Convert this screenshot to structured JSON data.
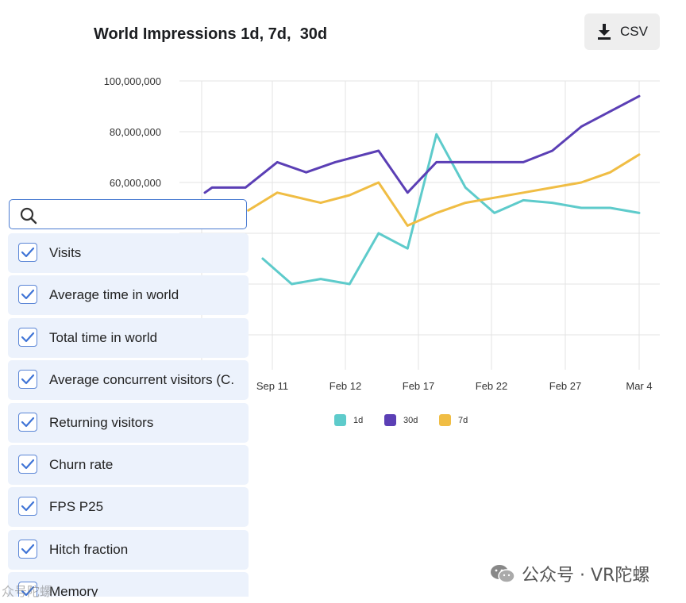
{
  "header": {
    "title": "World Impressions 1d, 7d,  30d",
    "csv_label": "CSV"
  },
  "search": {
    "value": "",
    "placeholder": ""
  },
  "metrics": [
    {
      "label": "Visits",
      "checked": true
    },
    {
      "label": "Average time in world",
      "checked": true
    },
    {
      "label": "Total time in world",
      "checked": true
    },
    {
      "label": "Average concurrent visitors (C.",
      "checked": true
    },
    {
      "label": "Returning visitors",
      "checked": true
    },
    {
      "label": "Churn rate",
      "checked": true
    },
    {
      "label": "FPS P25",
      "checked": true
    },
    {
      "label": "Hitch fraction",
      "checked": true
    },
    {
      "label": "Memory",
      "checked": true
    }
  ],
  "watermark": {
    "right": "公众号 · VR陀螺",
    "left": "众号陀螺"
  },
  "chart_data": {
    "type": "line",
    "title": "World Impressions 1d, 7d,  30d",
    "x_labels": [
      "Sep 11",
      "Feb 12",
      "Feb 17",
      "Feb 22",
      "Feb 27",
      "Mar 4"
    ],
    "y_ticks": [
      "100,000,000",
      "80,000,000",
      "60,000,000"
    ],
    "ylim": [
      0,
      100000000
    ],
    "x_range": [
      0,
      30
    ],
    "grid": true,
    "legend_position": "bottom-center",
    "series": [
      {
        "name": "1d",
        "color": "#5ecbcb",
        "x": [
          4,
          6,
          8,
          10,
          12,
          14,
          16,
          18,
          20,
          22,
          24,
          26,
          28,
          30
        ],
        "y": [
          30000000,
          20000000,
          22000000,
          20000000,
          40000000,
          34000000,
          79000000,
          58000000,
          48000000,
          53000000,
          52000000,
          50000000,
          50000000,
          48000000
        ]
      },
      {
        "name": "30d",
        "color": "#5b3fb5",
        "x": [
          0,
          0.5,
          2.8,
          5,
          7,
          9,
          12,
          14,
          16,
          18,
          20,
          22,
          24,
          26,
          30
        ],
        "y": [
          56000000,
          58000000,
          58000000,
          68000000,
          64000000,
          68000000,
          72500000,
          56000000,
          68000000,
          68000000,
          68000000,
          68000000,
          72500000,
          82000000,
          94000000
        ]
      },
      {
        "name": "7d",
        "color": "#f0bd44",
        "x": [
          3,
          5,
          8,
          10,
          12,
          14,
          16,
          18,
          20,
          22,
          24,
          26,
          28,
          30
        ],
        "y": [
          49000000,
          56000000,
          52000000,
          55000000,
          60000000,
          43000000,
          48000000,
          52000000,
          54000000,
          56000000,
          58000000,
          60000000,
          64000000,
          71000000
        ]
      }
    ]
  }
}
